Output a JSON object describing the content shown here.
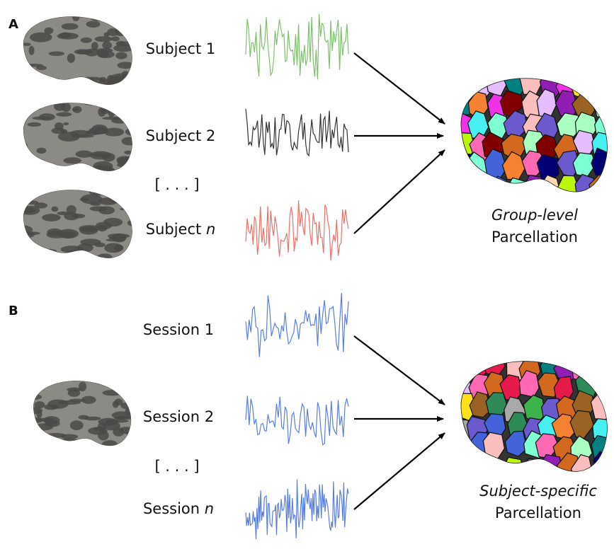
{
  "panels": [
    {
      "label": "A",
      "rows": [
        {
          "name": "Subject",
          "index": "1"
        },
        {
          "name": "Subject",
          "index": "2"
        },
        {
          "name": "Subject",
          "index": "n"
        }
      ],
      "ellipsis": "[ . . . ]",
      "output": {
        "qualifier": "Group-level",
        "name": "Parcellation"
      }
    },
    {
      "label": "B",
      "rows": [
        {
          "name": "Session",
          "index": "1"
        },
        {
          "name": "Session",
          "index": "2"
        },
        {
          "name": "Session",
          "index": "n"
        }
      ],
      "ellipsis": "[ . . . ]",
      "output": {
        "qualifier": "Subject-specific",
        "name": "Parcellation"
      }
    }
  ]
}
